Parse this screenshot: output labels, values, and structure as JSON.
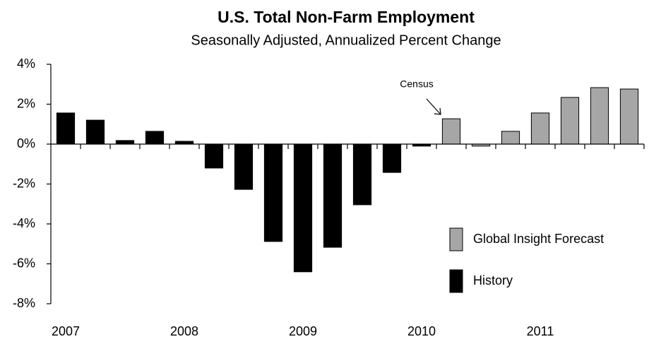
{
  "chart_data": {
    "type": "bar",
    "title": "U.S. Total Non-Farm Employment",
    "subtitle": "Seasonally Adjusted, Annualized Percent Change",
    "annotation": "Census",
    "categories": [
      "2007",
      null,
      null,
      null,
      "2008",
      null,
      null,
      null,
      "2009",
      null,
      null,
      null,
      "2010",
      null,
      null,
      null,
      "2011",
      null,
      null,
      null
    ],
    "series": [
      {
        "name": "Global Insight Forecast",
        "color": "#a6a6a6",
        "values": [
          null,
          null,
          null,
          null,
          null,
          null,
          null,
          null,
          null,
          null,
          null,
          null,
          null,
          1.27,
          -0.1,
          0.64,
          1.56,
          2.34,
          2.83,
          2.76
        ]
      },
      {
        "name": "History",
        "color": "#000000",
        "values": [
          1.56,
          1.2,
          0.18,
          0.64,
          0.14,
          -1.2,
          -2.27,
          -4.88,
          -6.4,
          -5.17,
          -3.04,
          -1.42,
          -0.1,
          null,
          null,
          null,
          null,
          null,
          null,
          null
        ]
      }
    ],
    "ylim": [
      -8,
      4
    ],
    "yticks": [
      {
        "value": -8,
        "label": "-8%"
      },
      {
        "value": -6,
        "label": "-6%"
      },
      {
        "value": -4,
        "label": "-4%"
      },
      {
        "value": -2,
        "label": "-2%"
      },
      {
        "value": 0,
        "label": "0%"
      },
      {
        "value": 2,
        "label": "2%"
      },
      {
        "value": 4,
        "label": "4%"
      }
    ],
    "grid": false
  }
}
